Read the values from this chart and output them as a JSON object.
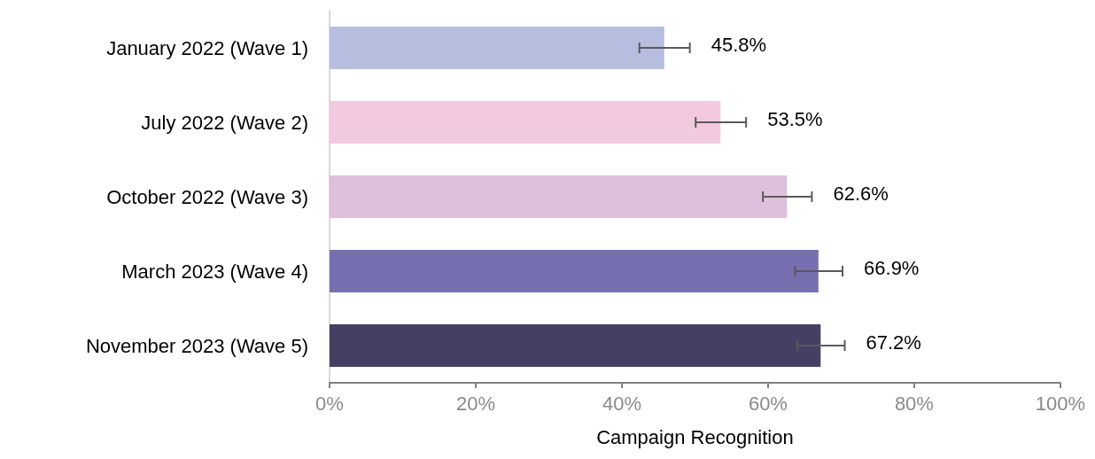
{
  "chart_data": {
    "type": "bar",
    "orientation": "horizontal",
    "xlabel": "Campaign Recognition",
    "categories": [
      "January 2022 (Wave 1)",
      "July 2022 (Wave 2)",
      "October 2022 (Wave 3)",
      "March 2023 (Wave 4)",
      "November 2023 (Wave 5)"
    ],
    "values": [
      45.8,
      53.5,
      62.6,
      66.9,
      67.2
    ],
    "colors": [
      "#b6bedf",
      "#f3c9df",
      "#dfc0dc",
      "#7670b1",
      "#434064"
    ],
    "errors": [
      [
        42.4,
        49.3
      ],
      [
        50.1,
        57.0
      ],
      [
        59.3,
        66.0
      ],
      [
        63.7,
        70.2
      ],
      [
        64.0,
        70.5
      ]
    ],
    "value_labels": [
      "45.8%",
      "53.5%",
      "62.6%",
      "66.9%",
      "67.2%"
    ],
    "xlim": [
      0,
      100
    ],
    "xticks": [
      {
        "value": 0,
        "label": "0%"
      },
      {
        "value": 20,
        "label": "20%"
      },
      {
        "value": 40,
        "label": "40%"
      },
      {
        "value": 60,
        "label": "60%"
      },
      {
        "value": 80,
        "label": "80%"
      },
      {
        "value": 100,
        "label": "100%"
      }
    ],
    "grid": false
  }
}
